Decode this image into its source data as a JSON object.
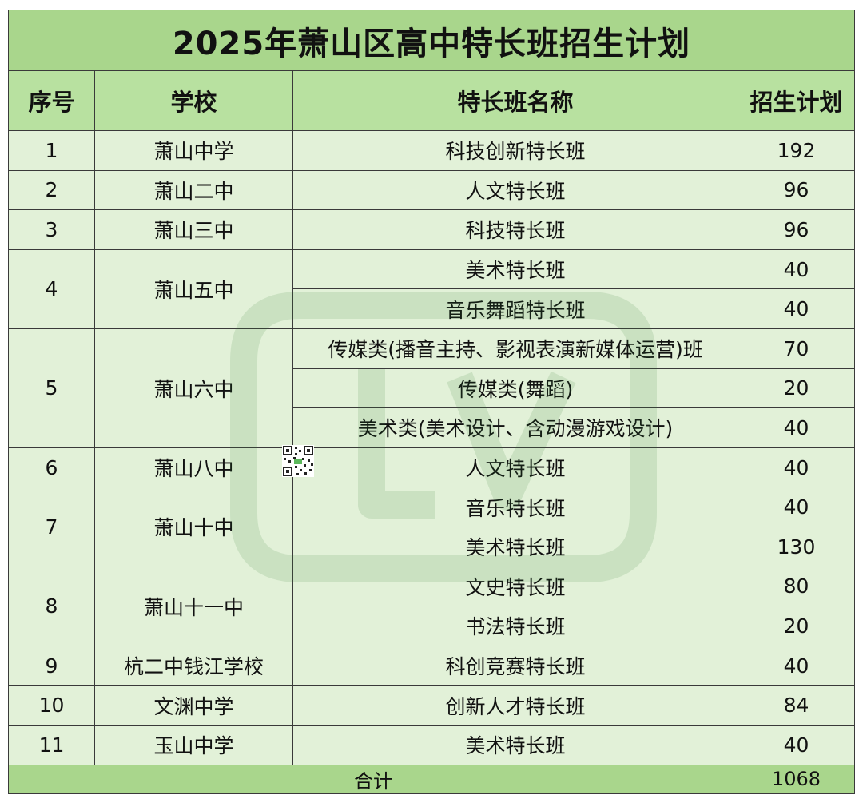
{
  "title": "2025年萧山区高中特长班招生计划",
  "headers": {
    "no": "序号",
    "school": "学校",
    "class_name": "特长班名称",
    "plan": "招生计划"
  },
  "groups": [
    {
      "no": "1",
      "school": "萧山中学",
      "classes": [
        {
          "name": "科技创新特长班",
          "plan": "192"
        }
      ]
    },
    {
      "no": "2",
      "school": "萧山二中",
      "classes": [
        {
          "name": "人文特长班",
          "plan": "96"
        }
      ]
    },
    {
      "no": "3",
      "school": "萧山三中",
      "classes": [
        {
          "name": "科技特长班",
          "plan": "96"
        }
      ]
    },
    {
      "no": "4",
      "school": "萧山五中",
      "classes": [
        {
          "name": "美术特长班",
          "plan": "40"
        },
        {
          "name": "音乐舞蹈特长班",
          "plan": "40"
        }
      ]
    },
    {
      "no": "5",
      "school": "萧山六中",
      "classes": [
        {
          "name": "传媒类(播音主持、影视表演新媒体运营)班",
          "plan": "70"
        },
        {
          "name": "传媒类(舞蹈)",
          "plan": "20"
        },
        {
          "name": "美术类(美术设计、含动漫游戏设计)",
          "plan": "40"
        }
      ]
    },
    {
      "no": "6",
      "school": "萧山八中",
      "classes": [
        {
          "name": "人文特长班",
          "plan": "40"
        }
      ]
    },
    {
      "no": "7",
      "school": "萧山十中",
      "classes": [
        {
          "name": "音乐特长班",
          "plan": "40"
        },
        {
          "name": "美术特长班",
          "plan": "130"
        }
      ]
    },
    {
      "no": "8",
      "school": "萧山十一中",
      "classes": [
        {
          "name": "文史特长班",
          "plan": "80"
        },
        {
          "name": "书法特长班",
          "plan": "20"
        }
      ]
    },
    {
      "no": "9",
      "school": "杭二中钱江学校",
      "classes": [
        {
          "name": "科创竞赛特长班",
          "plan": "40"
        }
      ]
    },
    {
      "no": "10",
      "school": "文渊中学",
      "classes": [
        {
          "name": "创新人才特长班",
          "plan": "84"
        }
      ]
    },
    {
      "no": "11",
      "school": "玉山中学",
      "classes": [
        {
          "name": "美术特长班",
          "plan": "40"
        }
      ]
    }
  ],
  "total": {
    "label": "合计",
    "value": "1068"
  },
  "colors": {
    "title_bg": "#a9d68c",
    "header_bg": "#b8e1a0",
    "body_bg": "#e2f1d8",
    "total_bg": "#a9d68c",
    "border": "#3a3a3a"
  }
}
